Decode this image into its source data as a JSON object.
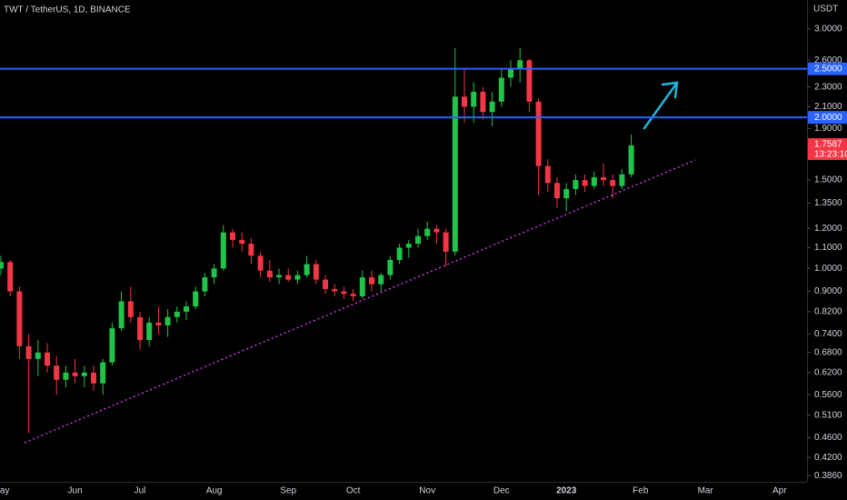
{
  "chart_data": {
    "type": "candlestick",
    "title": "TWT / TetherUS, 1D, BINANCE",
    "y_axis_label": "USDT",
    "log": true,
    "categories": [
      "May",
      null,
      null,
      null,
      null,
      null,
      null,
      null,
      "Jun",
      null,
      null,
      null,
      null,
      null,
      null,
      "Jul",
      null,
      null,
      null,
      null,
      null,
      null,
      null,
      "Aug",
      null,
      null,
      null,
      null,
      null,
      null,
      null,
      "Sep",
      null,
      null,
      null,
      null,
      null,
      null,
      "Oct",
      null,
      null,
      null,
      null,
      null,
      null,
      null,
      "Nov",
      null,
      null,
      null,
      null,
      null,
      null,
      null,
      "Dec",
      null,
      null,
      null,
      null,
      null,
      null,
      "2023",
      null,
      null,
      null,
      null,
      null,
      null,
      null,
      "Feb",
      null,
      null,
      null,
      null,
      null,
      null,
      "Mar",
      null,
      null,
      null,
      null,
      null,
      null,
      null,
      "Apr",
      null,
      null
    ],
    "series": [
      {
        "up_color": "#22c34a",
        "down_color": "#f23645",
        "open": [
          1.0,
          1.03,
          0.9,
          0.7,
          0.66,
          0.68,
          0.64,
          0.6,
          0.62,
          0.61,
          0.62,
          0.59,
          0.65,
          0.76,
          0.86,
          0.8,
          0.72,
          0.78,
          0.77,
          0.8,
          0.82,
          0.84,
          0.9,
          0.96,
          1.0,
          1.18,
          1.14,
          1.12,
          1.06,
          0.99,
          0.96,
          0.97,
          0.95,
          0.97,
          1.02,
          0.95,
          0.91,
          0.9,
          0.89,
          0.88,
          0.96,
          0.93,
          0.97,
          1.04,
          1.1,
          1.12,
          1.16,
          1.2,
          1.18,
          1.08,
          2.2,
          2.1,
          2.25,
          2.05,
          2.15,
          2.4,
          2.5,
          2.6,
          2.15,
          1.6,
          1.48,
          1.38,
          1.44,
          1.5,
          1.46,
          1.52,
          1.5,
          1.46,
          1.54,
          null,
          null,
          null,
          null,
          null,
          null,
          null,
          null,
          null,
          null,
          null,
          null,
          null,
          null,
          null,
          null,
          null,
          null
        ],
        "high": [
          1.06,
          1.04,
          0.92,
          0.74,
          0.72,
          0.71,
          0.67,
          0.64,
          0.66,
          0.64,
          0.64,
          0.66,
          0.78,
          0.9,
          0.92,
          0.82,
          0.8,
          0.84,
          0.83,
          0.84,
          0.86,
          0.92,
          0.98,
          1.02,
          1.22,
          1.2,
          1.18,
          1.15,
          1.08,
          1.04,
          1.0,
          1.0,
          0.99,
          1.06,
          1.04,
          0.97,
          0.93,
          0.92,
          0.91,
          0.99,
          0.99,
          0.98,
          1.06,
          1.12,
          1.14,
          1.2,
          1.24,
          1.22,
          1.2,
          2.75,
          2.5,
          2.35,
          2.3,
          2.25,
          2.5,
          2.6,
          2.75,
          2.62,
          2.18,
          1.65,
          1.52,
          1.48,
          1.54,
          1.54,
          1.56,
          1.62,
          1.54,
          1.58,
          1.85,
          null,
          null,
          null,
          null,
          null,
          null,
          null,
          null,
          null,
          null,
          null,
          null,
          null,
          null,
          null,
          null,
          null,
          null
        ],
        "low": [
          0.97,
          0.88,
          0.66,
          0.47,
          0.61,
          0.62,
          0.56,
          0.58,
          0.59,
          0.58,
          0.57,
          0.56,
          0.64,
          0.75,
          0.78,
          0.69,
          0.7,
          0.74,
          0.73,
          0.78,
          0.79,
          0.83,
          0.88,
          0.93,
          0.99,
          1.1,
          1.08,
          1.02,
          0.96,
          0.94,
          0.93,
          0.94,
          0.93,
          0.96,
          0.93,
          0.89,
          0.88,
          0.87,
          0.86,
          0.87,
          0.9,
          0.9,
          0.95,
          1.02,
          1.05,
          1.1,
          1.14,
          1.12,
          1.01,
          1.06,
          1.95,
          1.95,
          1.98,
          1.92,
          2.1,
          2.3,
          2.35,
          2.05,
          1.4,
          1.42,
          1.32,
          1.3,
          1.4,
          1.42,
          1.44,
          1.46,
          1.38,
          1.44,
          1.52,
          null,
          null,
          null,
          null,
          null,
          null,
          null,
          null,
          null,
          null,
          null,
          null,
          null,
          null,
          null,
          null,
          null,
          null
        ],
        "close": [
          1.03,
          0.9,
          0.7,
          0.66,
          0.68,
          0.64,
          0.6,
          0.62,
          0.61,
          0.62,
          0.59,
          0.65,
          0.76,
          0.86,
          0.8,
          0.72,
          0.78,
          0.77,
          0.8,
          0.82,
          0.84,
          0.9,
          0.96,
          1.0,
          1.18,
          1.14,
          1.12,
          1.06,
          0.99,
          0.96,
          0.97,
          0.95,
          0.97,
          1.02,
          0.95,
          0.91,
          0.9,
          0.89,
          0.88,
          0.96,
          0.93,
          0.97,
          1.04,
          1.1,
          1.12,
          1.16,
          1.2,
          1.18,
          1.08,
          2.2,
          2.1,
          2.25,
          2.05,
          2.15,
          2.4,
          2.5,
          2.6,
          2.15,
          1.6,
          1.48,
          1.38,
          1.44,
          1.5,
          1.46,
          1.52,
          1.5,
          1.46,
          1.54,
          1.7587,
          null,
          null,
          null,
          null,
          null,
          null,
          null,
          null,
          null,
          null,
          null,
          null,
          null,
          null,
          null,
          null,
          null,
          null
        ]
      }
    ],
    "ylim": [
      0.3756,
      3.428
    ],
    "yticks": [
      {
        "value": 3.0,
        "label": "3.0000"
      },
      {
        "value": 2.6,
        "label": "2.6000"
      },
      {
        "value": 2.3,
        "label": "2.3000"
      },
      {
        "value": 2.1,
        "label": "2.1000"
      },
      {
        "value": 1.9,
        "label": "1.9000"
      },
      {
        "value": 1.5,
        "label": "1.5000"
      },
      {
        "value": 1.35,
        "label": "1.3500"
      },
      {
        "value": 1.2,
        "label": "1.2000"
      },
      {
        "value": 1.1,
        "label": "1.1000"
      },
      {
        "value": 1.0,
        "label": "1.0000"
      },
      {
        "value": 0.9,
        "label": "0.9000"
      },
      {
        "value": 0.82,
        "label": "0.8200"
      },
      {
        "value": 0.74,
        "label": "0.7400"
      },
      {
        "value": 0.68,
        "label": "0.6800"
      },
      {
        "value": 0.62,
        "label": "0.6200"
      },
      {
        "value": 0.56,
        "label": "0.5600"
      },
      {
        "value": 0.51,
        "label": "0.5100"
      },
      {
        "value": 0.46,
        "label": "0.4600"
      },
      {
        "value": 0.42,
        "label": "0.4200"
      },
      {
        "value": 0.386,
        "label": "0.3860"
      }
    ],
    "hlines": [
      {
        "value": 2.5,
        "label": "2.5000",
        "color": "#2962ff"
      },
      {
        "value": 2.0,
        "label": "2.0000",
        "color": "#2962ff"
      }
    ],
    "last_price": {
      "value": 1.7587,
      "label": "1.7587",
      "countdown": "13:23:10",
      "color": "#f23645"
    }
  }
}
